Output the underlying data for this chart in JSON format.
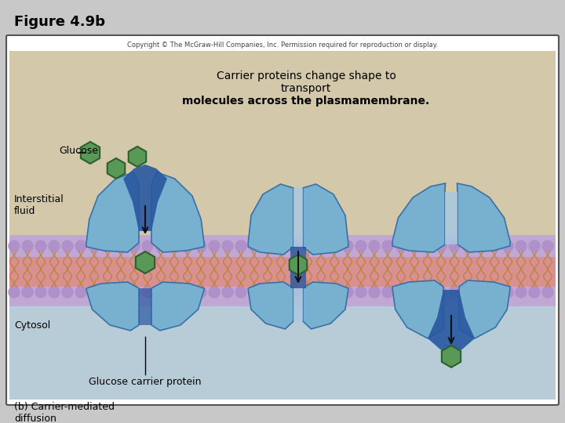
{
  "title": "Figure 4.9b",
  "copyright": "Copyright © The McGraw-Hill Companies, Inc. Permission required for reproduction or display.",
  "main_text_line1": "Carrier proteins change shape to",
  "main_text_line2": "transport",
  "main_text_line3": "molecules across the plasmamembrane.",
  "label_glucose": "Glucose",
  "label_interstitial": "Interstitial\nfluid",
  "label_cytosol": "Cytosol",
  "label_carrier": "Glucose carrier protein",
  "label_bottom1": "(b) Carrier-mediated",
  "label_bottom2": "diffusion",
  "fig_bg": "#c8c8c8",
  "box_bg": "#ffffff",
  "interstitial_color": "#d8ccb0",
  "cytosol_color": "#b8ccd8",
  "membrane_purple": "#c0aad0",
  "membrane_pink": "#d89898",
  "lipid_head_color": "#b090c8",
  "lipid_tail_color": "#c89040",
  "carrier_blue_light": "#a8c8e0",
  "carrier_blue_mid": "#78b0d0",
  "carrier_blue_dark": "#3870a8",
  "carrier_channel_dark": "#2858a0",
  "glucose_fill": "#5a9858",
  "glucose_edge": "#2a6030",
  "arrow_color": "#111111"
}
